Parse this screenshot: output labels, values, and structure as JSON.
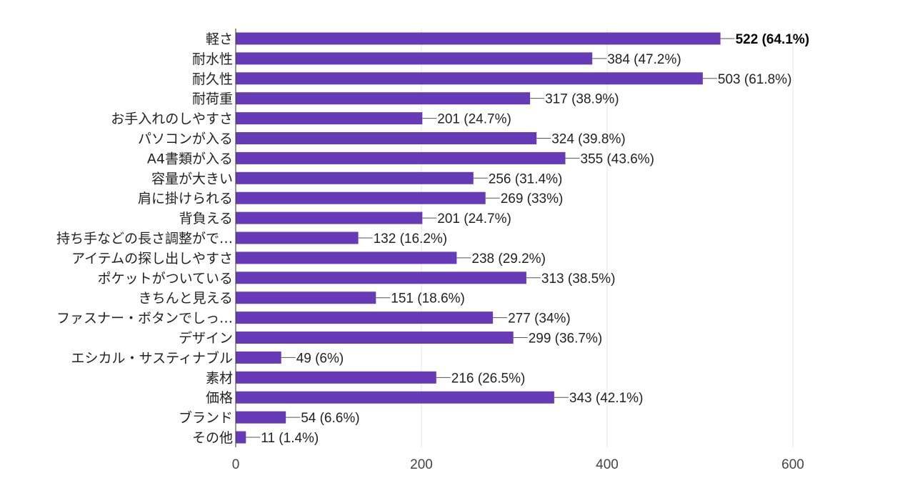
{
  "chart_data": {
    "type": "bar",
    "orientation": "horizontal",
    "categories": [
      "軽さ",
      "耐水性",
      "耐久性",
      "耐荷重",
      "お手入れのしやすさ",
      "パソコンが入る",
      "A4書類が入る",
      "容量が大きい",
      "肩に掛けられる",
      "背負える",
      "持ち手などの長さ調整がで…",
      "アイテムの探し出しやすさ",
      "ポケットがついている",
      "きちんと見える",
      "ファスナー・ボタンでしっ…",
      "デザイン",
      "エシカル・サスティナブル",
      "素材",
      "価格",
      "ブランド",
      "その他"
    ],
    "values": [
      522,
      384,
      503,
      317,
      201,
      324,
      355,
      256,
      269,
      201,
      132,
      238,
      313,
      151,
      277,
      299,
      49,
      216,
      343,
      54,
      11
    ],
    "data_labels": [
      "522 (64.1%)",
      "384 (47.2%)",
      "503 (61.8%)",
      "317 (38.9%)",
      "201 (24.7%)",
      "324 (39.8%)",
      "355 (43.6%)",
      "256 (31.4%)",
      "269 (33%)",
      "201 (24.7%)",
      "132 (16.2%)",
      "238 (29.2%)",
      "313 (38.5%)",
      "151 (18.6%)",
      "277 (34%)",
      "299 (36.7%)",
      "49 (6%)",
      "216 (26.5%)",
      "343 (42.1%)",
      "54 (6.6%)",
      "11 (1.4%)"
    ],
    "highlight_index": 0,
    "xlim": [
      0,
      600
    ],
    "xticks": [
      0,
      200,
      400,
      600
    ],
    "xtick_labels": [
      "0",
      "200",
      "400",
      "600"
    ],
    "title": "",
    "xlabel": "",
    "ylabel": "",
    "grid": true,
    "bar_color": "#673ab7"
  }
}
